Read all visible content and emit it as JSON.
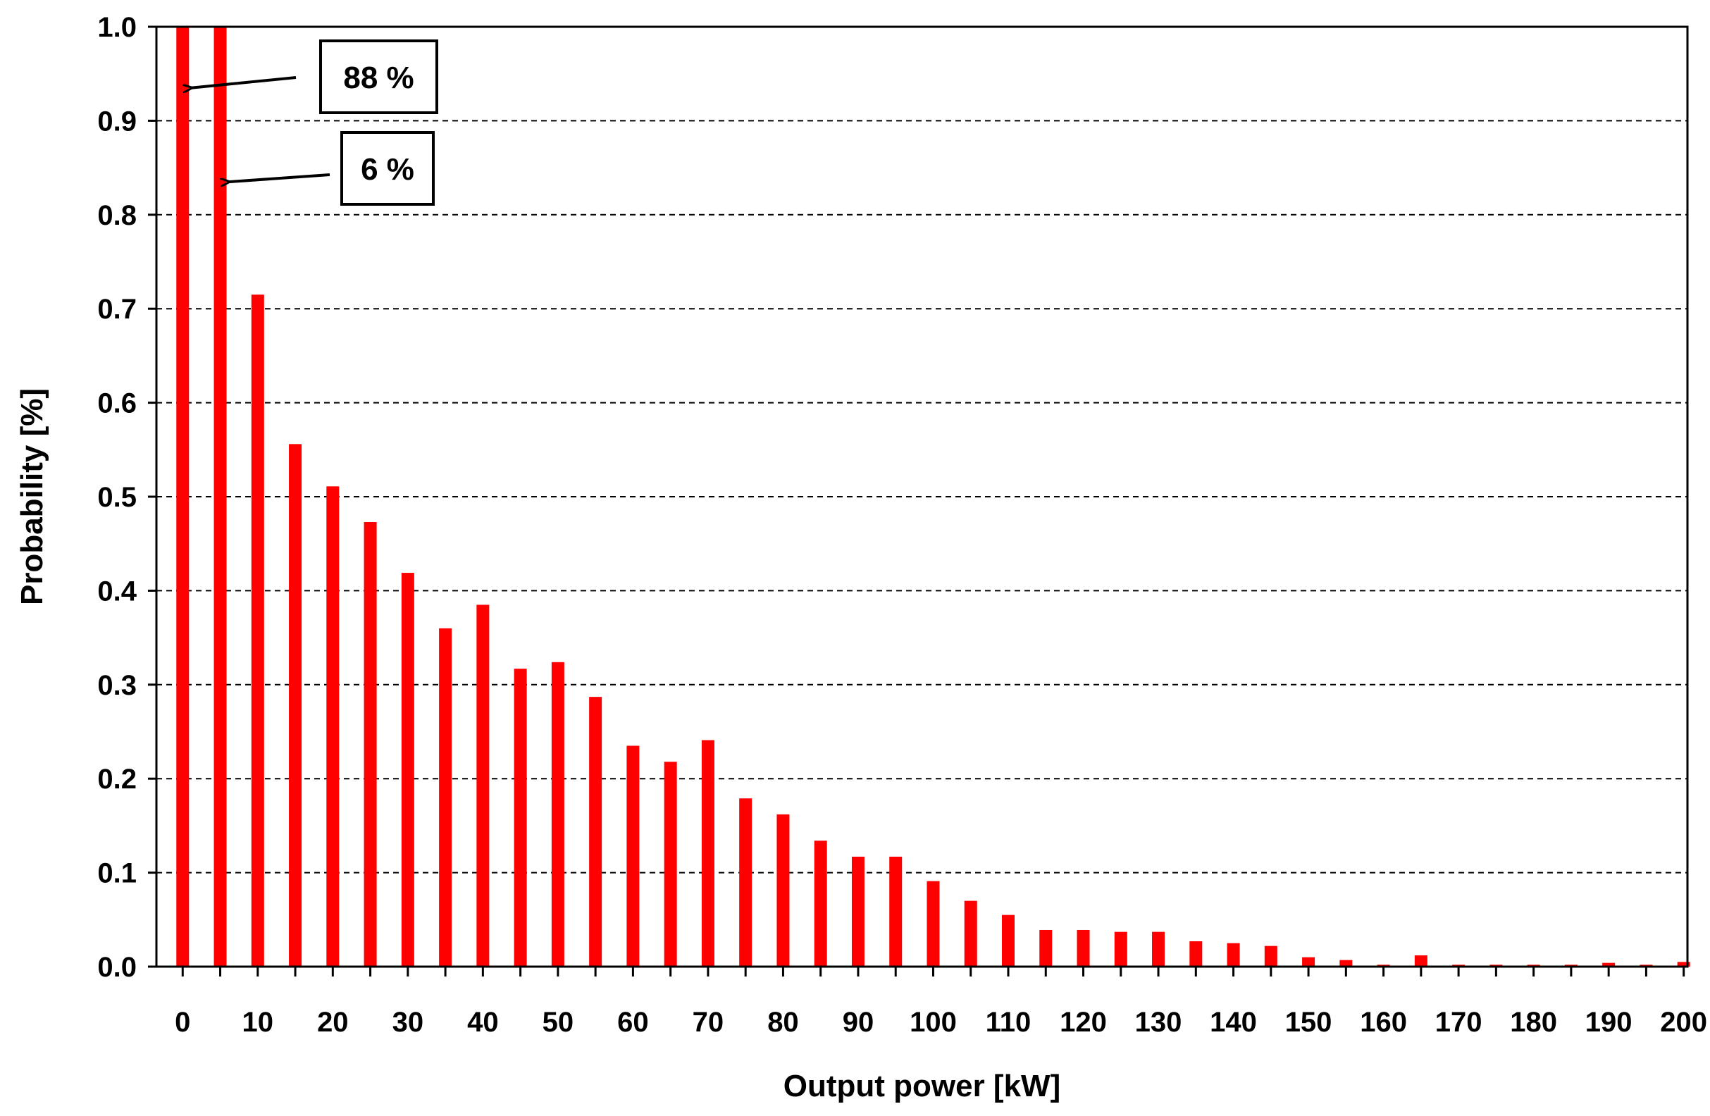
{
  "chart_data": {
    "type": "bar",
    "xlabel": "Output power [kW]",
    "ylabel": "Probability [%]",
    "ylim": [
      0,
      1.0
    ],
    "yticks": [
      "0.0",
      "0.1",
      "0.2",
      "0.3",
      "0.4",
      "0.5",
      "0.6",
      "0.7",
      "0.8",
      "0.9",
      "1.0"
    ],
    "xtick_labels": [
      "0",
      "10",
      "20",
      "30",
      "40",
      "50",
      "60",
      "70",
      "80",
      "90",
      "100",
      "110",
      "120",
      "130",
      "140",
      "150",
      "160",
      "170",
      "180",
      "190",
      "200"
    ],
    "grid": "horizontal-dashed",
    "bar_color": "#ff0000",
    "x": [
      0,
      5,
      10,
      15,
      20,
      25,
      30,
      35,
      40,
      45,
      50,
      55,
      60,
      65,
      70,
      75,
      80,
      85,
      90,
      95,
      100,
      105,
      110,
      115,
      120,
      125,
      130,
      135,
      140,
      145,
      150,
      155,
      160,
      165,
      170,
      175,
      180,
      185,
      190,
      195,
      200
    ],
    "values": [
      1.0,
      1.0,
      0.715,
      0.556,
      0.511,
      0.473,
      0.419,
      0.36,
      0.385,
      0.317,
      0.324,
      0.287,
      0.235,
      0.218,
      0.241,
      0.179,
      0.162,
      0.134,
      0.117,
      0.117,
      0.091,
      0.07,
      0.055,
      0.039,
      0.039,
      0.037,
      0.037,
      0.027,
      0.025,
      0.022,
      0.01,
      0.007,
      0.002,
      0.012,
      0.002,
      0.002,
      0.002,
      0.002,
      0.004,
      0.002,
      0.005
    ],
    "annotations": [
      {
        "text": "88 %",
        "target_x": 0
      },
      {
        "text": "6 %",
        "target_x": 5
      }
    ]
  }
}
